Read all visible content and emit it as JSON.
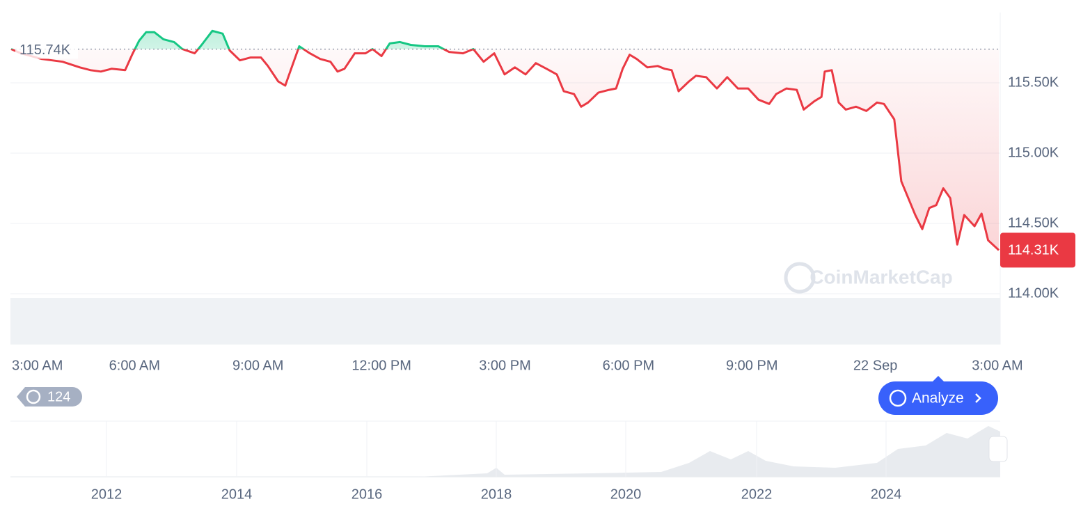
{
  "chart_data": {
    "type": "line",
    "x": [
      0,
      0.24,
      0.74,
      1.25,
      1.67,
      1.93,
      2.18,
      2.44,
      2.77,
      2.94,
      3.11,
      3.28,
      3.48,
      3.7,
      3.96,
      4.16,
      4.46,
      4.63,
      4.89,
      5.14,
      5.31,
      5.56,
      5.82,
      6.07,
      6.24,
      6.49,
      6.66,
      6.83,
      7.0,
      7.26,
      7.51,
      7.76,
      7.93,
      8.1,
      8.35,
      8.61,
      8.78,
      9.0,
      9.2,
      9.45,
      9.71,
      10.05,
      10.38,
      10.64,
      10.98,
      11.23,
      11.48,
      11.74,
      11.99,
      12.24,
      12.5,
      12.75,
      13.01,
      13.26,
      13.43,
      13.68,
      13.85,
      14.02,
      14.27,
      14.53,
      14.7,
      14.86,
      15.03,
      15.2,
      15.46,
      15.71,
      15.88,
      16.05,
      16.22,
      16.47,
      16.64,
      16.89,
      17.15,
      17.4,
      17.66,
      17.91,
      18.16,
      18.42,
      18.59,
      18.84,
      19.09,
      19.26,
      19.52,
      19.69,
      19.77,
      19.94,
      20.11,
      20.28,
      20.53,
      20.78,
      21.04,
      21.21,
      21.46,
      21.63,
      21.8,
      21.97,
      22.14,
      22.31,
      22.48,
      22.65,
      22.82,
      22.99,
      23.16,
      23.41,
      23.58,
      23.74,
      24
    ],
    "series": [
      {
        "name": "Price",
        "color": "#ea3943",
        "values": [
          115740,
          115710,
          115670,
          115650,
          115610,
          115590,
          115580,
          115600,
          115590,
          115700,
          115800,
          115860,
          115860,
          115810,
          115790,
          115740,
          115710,
          115770,
          115870,
          115850,
          115730,
          115660,
          115680,
          115680,
          115620,
          115510,
          115480,
          115620,
          115760,
          115710,
          115670,
          115650,
          115580,
          115600,
          115710,
          115710,
          115740,
          115690,
          115780,
          115790,
          115770,
          115760,
          115760,
          115720,
          115710,
          115740,
          115650,
          115710,
          115560,
          115610,
          115560,
          115640,
          115600,
          115560,
          115440,
          115420,
          115330,
          115360,
          115430,
          115450,
          115460,
          115600,
          115700,
          115670,
          115610,
          115620,
          115600,
          115590,
          115440,
          115510,
          115550,
          115540,
          115460,
          115540,
          115460,
          115460,
          115380,
          115350,
          115420,
          115460,
          115450,
          115310,
          115370,
          115400,
          115580,
          115590,
          115360,
          115310,
          115330,
          115300,
          115360,
          115350,
          115240,
          114800,
          114680,
          114560,
          114460,
          114610,
          114630,
          114750,
          114680,
          114350,
          114560,
          114480,
          114570,
          114380,
          114310
        ]
      }
    ],
    "up_color": "#16c784",
    "xlim": [
      0,
      24
    ],
    "xticks": [
      {
        "value": 0,
        "label": "3:00 AM"
      },
      {
        "value": 3,
        "label": "6:00 AM"
      },
      {
        "value": 6,
        "label": "9:00 AM"
      },
      {
        "value": 9,
        "label": "12:00 PM"
      },
      {
        "value": 12,
        "label": "3:00 PM"
      },
      {
        "value": 15,
        "label": "6:00 PM"
      },
      {
        "value": 18,
        "label": "9:00 PM"
      },
      {
        "value": 21,
        "label": "22 Sep"
      },
      {
        "value": 24,
        "label": "3:00 AM"
      }
    ],
    "ylim": [
      114000,
      116000
    ],
    "yticks": [
      {
        "value": 114000,
        "label": "114.00K"
      },
      {
        "value": 114500,
        "label": "114.50K"
      },
      {
        "value": 115000,
        "label": "115.00K"
      },
      {
        "value": 115500,
        "label": "115.50K"
      }
    ],
    "grid": true,
    "baseline": {
      "value": 115740,
      "label": "115.74K"
    },
    "current": {
      "value": 114310,
      "label": "114.31K"
    }
  },
  "watermark": "CoinMarketCap",
  "history_badge": "124",
  "analyze_button": "Analyze",
  "navigator": {
    "labels": [
      "2012",
      "2014",
      "2016",
      "2018",
      "2020",
      "2022",
      "2024"
    ]
  }
}
